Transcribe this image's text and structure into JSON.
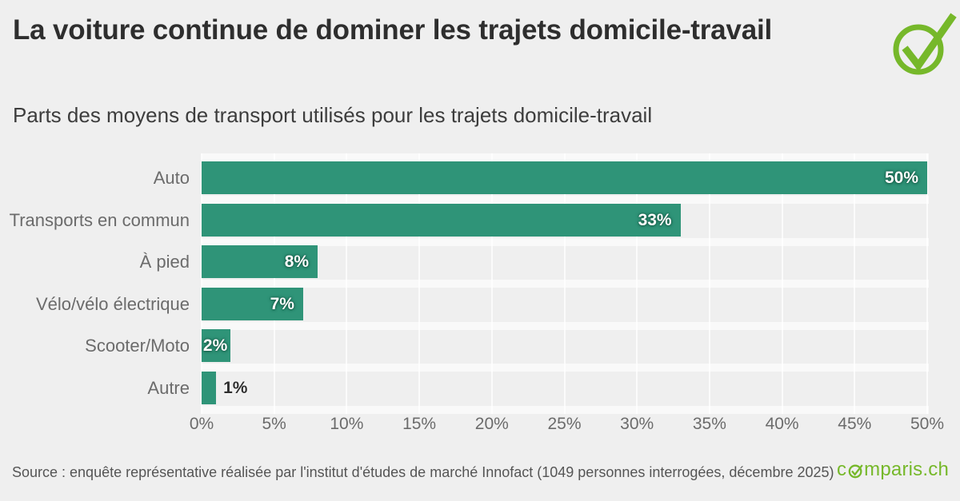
{
  "header": {
    "title": "La voiture continue de dominer les trajets domicile-travail",
    "subtitle": "Parts des moyens de transport utilisés pour les trajets domicile-travail"
  },
  "chart_data": {
    "type": "bar",
    "orientation": "horizontal",
    "title": "La voiture continue de dominer les trajets domicile-travail",
    "subtitle": "Parts des moyens de transport utilisés pour les trajets domicile-travail",
    "categories": [
      "Auto",
      "Transports en commun",
      "À pied",
      "Vélo/vélo électrique",
      "Scooter/Moto",
      "Autre"
    ],
    "values": [
      50,
      33,
      8,
      7,
      2,
      1
    ],
    "value_labels": [
      "50%",
      "33%",
      "8%",
      "7%",
      "2%",
      "1%"
    ],
    "x_ticks": [
      "0%",
      "5%",
      "10%",
      "15%",
      "20%",
      "25%",
      "30%",
      "35%",
      "40%",
      "45%",
      "50%"
    ],
    "xlim": [
      0,
      50
    ],
    "xlabel": "",
    "ylabel": "",
    "grid": true,
    "legend_position": "none",
    "bar_color": "#2f9478"
  },
  "footer": {
    "source": "Source : enquête représentative réalisée par l'institut d'études de marché Innofact (1049 personnes interrogées, décembre 2025)",
    "brand": "comparis.ch",
    "brand_prefix": "c",
    "brand_suffix": "mparis.ch"
  },
  "icons": {
    "header_icon": "check-circle",
    "brand_icon": "check-circle"
  },
  "colors": {
    "background": "#efefef",
    "bar": "#2f9478",
    "brand_green": "#76b82a",
    "title_text": "#2e2e2e",
    "muted_text": "#6b6b6b",
    "value_label": "#ffffff"
  }
}
